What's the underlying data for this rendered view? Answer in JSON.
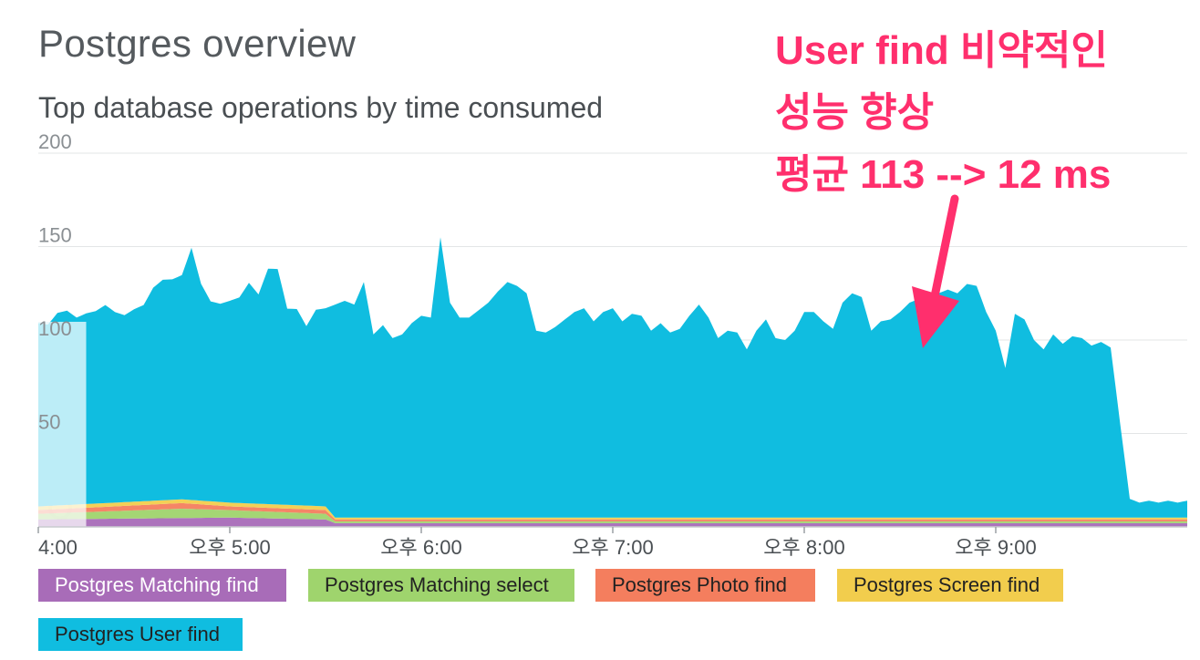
{
  "page": {
    "title": "Postgres overview"
  },
  "chart_data": {
    "type": "area",
    "stacked": true,
    "title": "Top database operations by time consumed",
    "ylim": [
      0,
      200
    ],
    "yticks": [
      50,
      100,
      150,
      200
    ],
    "ytick_labels": [
      "50",
      "100",
      "150",
      "200"
    ],
    "xlim": [
      0,
      6.0
    ],
    "x_unit": "hours since 4:00",
    "xticks": [
      0,
      1,
      2,
      3,
      4,
      5
    ],
    "xtick_labels": [
      "4:00",
      "오후 5:00",
      "오후 6:00",
      "오후 7:00",
      "오후 8:00",
      "오후 9:00"
    ],
    "grid": true,
    "legend_position": "bottom",
    "selection": {
      "x_start": 0,
      "x_end": 0.25
    },
    "series_colors": [
      "#a86cb8",
      "#9fd46d",
      "#f47e5e",
      "#f2cd4d",
      "#10bde0"
    ],
    "series": [
      {
        "name": "Postgres Matching find",
        "color": "#a86cb8",
        "points": [
          [
            0,
            4
          ],
          [
            1,
            5
          ],
          [
            1.5,
            4
          ],
          [
            1.55,
            2
          ],
          [
            6,
            2
          ]
        ]
      },
      {
        "name": "Postgres Matching select",
        "color": "#9fd46d",
        "points": [
          [
            0,
            3
          ],
          [
            0.75,
            5
          ],
          [
            1.0,
            4
          ],
          [
            1.5,
            3
          ],
          [
            1.55,
            1
          ],
          [
            6,
            1
          ]
        ]
      },
      {
        "name": "Postgres Photo find",
        "color": "#f47e5e",
        "points": [
          [
            0,
            2
          ],
          [
            0.75,
            3
          ],
          [
            1.0,
            2
          ],
          [
            1.5,
            2
          ],
          [
            1.55,
            1
          ],
          [
            6,
            1
          ]
        ]
      },
      {
        "name": "Postgres Screen find",
        "color": "#f2cd4d",
        "points": [
          [
            0,
            2
          ],
          [
            1.0,
            2
          ],
          [
            1.5,
            2
          ],
          [
            1.55,
            1
          ],
          [
            6,
            1
          ]
        ]
      },
      {
        "name": "Postgres User find",
        "color": "#10bde0",
        "points": [
          [
            0,
            98
          ],
          [
            0.05,
            97
          ],
          [
            0.1,
            103
          ],
          [
            0.15,
            104
          ],
          [
            0.2,
            100
          ],
          [
            0.25,
            102
          ],
          [
            0.3,
            103
          ],
          [
            0.35,
            106
          ],
          [
            0.4,
            102
          ],
          [
            0.45,
            100
          ],
          [
            0.5,
            103
          ],
          [
            0.55,
            105
          ],
          [
            0.6,
            114
          ],
          [
            0.65,
            118
          ],
          [
            0.7,
            118
          ],
          [
            0.75,
            120
          ],
          [
            0.8,
            135
          ],
          [
            0.85,
            116
          ],
          [
            0.9,
            107
          ],
          [
            0.95,
            106
          ],
          [
            1.0,
            108
          ],
          [
            1.05,
            110
          ],
          [
            1.1,
            118
          ],
          [
            1.15,
            112
          ],
          [
            1.2,
            126
          ],
          [
            1.25,
            126
          ],
          [
            1.3,
            105
          ],
          [
            1.35,
            105
          ],
          [
            1.4,
            96
          ],
          [
            1.45,
            105
          ],
          [
            1.5,
            106
          ],
          [
            1.55,
            114
          ],
          [
            1.6,
            116
          ],
          [
            1.65,
            114
          ],
          [
            1.7,
            126
          ],
          [
            1.75,
            98
          ],
          [
            1.8,
            103
          ],
          [
            1.85,
            96
          ],
          [
            1.9,
            98
          ],
          [
            1.95,
            104
          ],
          [
            2.0,
            108
          ],
          [
            2.05,
            107
          ],
          [
            2.1,
            150
          ],
          [
            2.15,
            115
          ],
          [
            2.2,
            107
          ],
          [
            2.25,
            107
          ],
          [
            2.3,
            111
          ],
          [
            2.35,
            115
          ],
          [
            2.4,
            121
          ],
          [
            2.45,
            126
          ],
          [
            2.5,
            124
          ],
          [
            2.55,
            120
          ],
          [
            2.6,
            100
          ],
          [
            2.65,
            99
          ],
          [
            2.7,
            102
          ],
          [
            2.75,
            106
          ],
          [
            2.8,
            110
          ],
          [
            2.85,
            112
          ],
          [
            2.9,
            105
          ],
          [
            2.95,
            110
          ],
          [
            3.0,
            112
          ],
          [
            3.05,
            105
          ],
          [
            3.1,
            109
          ],
          [
            3.15,
            108
          ],
          [
            3.2,
            100
          ],
          [
            3.25,
            104
          ],
          [
            3.3,
            99
          ],
          [
            3.35,
            101
          ],
          [
            3.4,
            108
          ],
          [
            3.45,
            114
          ],
          [
            3.5,
            107
          ],
          [
            3.55,
            96
          ],
          [
            3.6,
            100
          ],
          [
            3.65,
            99
          ],
          [
            3.7,
            90
          ],
          [
            3.75,
            100
          ],
          [
            3.8,
            106
          ],
          [
            3.85,
            96
          ],
          [
            3.9,
            95
          ],
          [
            3.95,
            100
          ],
          [
            4.0,
            110
          ],
          [
            4.05,
            110
          ],
          [
            4.1,
            105
          ],
          [
            4.15,
            101
          ],
          [
            4.2,
            115
          ],
          [
            4.25,
            120
          ],
          [
            4.3,
            118
          ],
          [
            4.35,
            100
          ],
          [
            4.4,
            105
          ],
          [
            4.45,
            106
          ],
          [
            4.5,
            110
          ],
          [
            4.55,
            115
          ],
          [
            4.6,
            117
          ],
          [
            4.65,
            116
          ],
          [
            4.7,
            120
          ],
          [
            4.75,
            122
          ],
          [
            4.8,
            120
          ],
          [
            4.85,
            125
          ],
          [
            4.9,
            124
          ],
          [
            4.95,
            110
          ],
          [
            5.0,
            100
          ],
          [
            5.05,
            80
          ],
          [
            5.1,
            109
          ],
          [
            5.15,
            106
          ],
          [
            5.2,
            95
          ],
          [
            5.25,
            90
          ],
          [
            5.3,
            98
          ],
          [
            5.35,
            93
          ],
          [
            5.4,
            97
          ],
          [
            5.45,
            96
          ],
          [
            5.5,
            92
          ],
          [
            5.55,
            94
          ],
          [
            5.6,
            91
          ],
          [
            5.65,
            50
          ],
          [
            5.7,
            10
          ],
          [
            5.75,
            8
          ],
          [
            5.8,
            9
          ],
          [
            5.85,
            8
          ],
          [
            5.9,
            9
          ],
          [
            5.95,
            8
          ],
          [
            6.0,
            9
          ]
        ]
      }
    ],
    "annotation": {
      "lines": [
        "User find 비약적인",
        "성능 향상",
        "평균 113 --> 12 ms"
      ],
      "color": "#ff2f6d"
    }
  },
  "legend": {
    "items": [
      {
        "label": "Postgres Matching find",
        "color": "#a86cb8",
        "dark": false
      },
      {
        "label": "Postgres Matching select",
        "color": "#9fd46d",
        "dark": true
      },
      {
        "label": "Postgres Photo find",
        "color": "#f47e5e",
        "dark": true
      },
      {
        "label": "Postgres Screen find",
        "color": "#f2cd4d",
        "dark": true
      },
      {
        "label": "Postgres User find",
        "color": "#10bde0",
        "dark": true
      }
    ]
  }
}
